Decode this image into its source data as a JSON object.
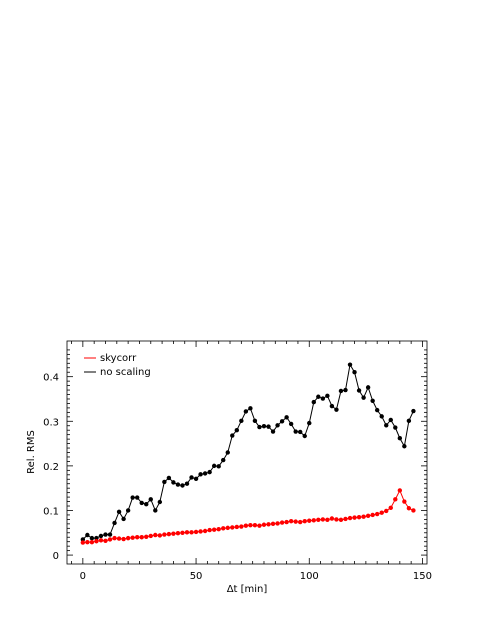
{
  "chart_data": {
    "type": "line",
    "xlabel": "Δt [min]",
    "ylabel": "Rel. RMS",
    "xlim": [
      -7,
      152
    ],
    "ylim": [
      -0.02,
      0.48
    ],
    "xticks": [
      0,
      50,
      100,
      150
    ],
    "yticks": [
      0,
      0.1,
      0.2,
      0.3,
      0.4
    ],
    "ytick_labels": [
      "0",
      "0.1",
      "0.2",
      "0.3",
      "0.4"
    ],
    "legend_position": "top-left",
    "series": [
      {
        "name": "no scaling",
        "color": "#000000",
        "x": [
          0,
          2,
          4,
          6,
          8,
          10,
          12,
          14,
          16,
          18,
          20,
          22,
          24,
          26,
          28,
          30,
          32,
          34,
          36,
          38,
          40,
          42,
          44,
          46,
          48,
          50,
          52,
          54,
          56,
          58,
          60,
          62,
          64,
          66,
          68,
          70,
          72,
          74,
          76,
          78,
          80,
          82,
          84,
          86,
          88,
          90,
          92,
          94,
          96,
          98,
          100,
          102,
          104,
          106,
          108,
          110,
          112,
          114,
          116,
          118,
          120,
          122,
          124,
          126,
          128,
          130,
          132,
          134,
          136,
          138,
          140,
          142,
          144,
          146
        ],
        "y": [
          0.035,
          0.045,
          0.038,
          0.038,
          0.043,
          0.046,
          0.046,
          0.072,
          0.097,
          0.081,
          0.1,
          0.129,
          0.129,
          0.117,
          0.114,
          0.125,
          0.1,
          0.119,
          0.164,
          0.173,
          0.163,
          0.158,
          0.156,
          0.16,
          0.174,
          0.171,
          0.181,
          0.183,
          0.186,
          0.2,
          0.199,
          0.213,
          0.23,
          0.268,
          0.28,
          0.301,
          0.322,
          0.329,
          0.301,
          0.287,
          0.289,
          0.288,
          0.277,
          0.291,
          0.3,
          0.309,
          0.294,
          0.277,
          0.276,
          0.267,
          0.296,
          0.343,
          0.355,
          0.351,
          0.357,
          0.334,
          0.326,
          0.368,
          0.37,
          0.427,
          0.41,
          0.369,
          0.353,
          0.376,
          0.346,
          0.325,
          0.311,
          0.291,
          0.303,
          0.286,
          0.262,
          0.244,
          0.301,
          0.323
        ]
      },
      {
        "name": "skycorr",
        "color": "#ff0000",
        "x": [
          0,
          2,
          4,
          6,
          8,
          10,
          12,
          14,
          16,
          18,
          20,
          22,
          24,
          26,
          28,
          30,
          32,
          34,
          36,
          38,
          40,
          42,
          44,
          46,
          48,
          50,
          52,
          54,
          56,
          58,
          60,
          62,
          64,
          66,
          68,
          70,
          72,
          74,
          76,
          78,
          80,
          82,
          84,
          86,
          88,
          90,
          92,
          94,
          96,
          98,
          100,
          102,
          104,
          106,
          108,
          110,
          112,
          114,
          116,
          118,
          120,
          122,
          124,
          126,
          128,
          130,
          132,
          134,
          136,
          138,
          140,
          142,
          144,
          146
        ],
        "y": [
          0.028,
          0.029,
          0.029,
          0.031,
          0.033,
          0.032,
          0.035,
          0.038,
          0.037,
          0.036,
          0.038,
          0.039,
          0.04,
          0.04,
          0.041,
          0.043,
          0.045,
          0.044,
          0.046,
          0.047,
          0.048,
          0.049,
          0.05,
          0.051,
          0.051,
          0.052,
          0.053,
          0.054,
          0.056,
          0.057,
          0.058,
          0.06,
          0.061,
          0.062,
          0.063,
          0.064,
          0.066,
          0.067,
          0.067,
          0.066,
          0.068,
          0.069,
          0.07,
          0.071,
          0.073,
          0.074,
          0.076,
          0.075,
          0.074,
          0.076,
          0.077,
          0.078,
          0.079,
          0.08,
          0.079,
          0.082,
          0.08,
          0.079,
          0.081,
          0.083,
          0.084,
          0.085,
          0.086,
          0.088,
          0.09,
          0.092,
          0.095,
          0.099,
          0.106,
          0.125,
          0.145,
          0.12,
          0.105,
          0.1
        ]
      }
    ]
  }
}
